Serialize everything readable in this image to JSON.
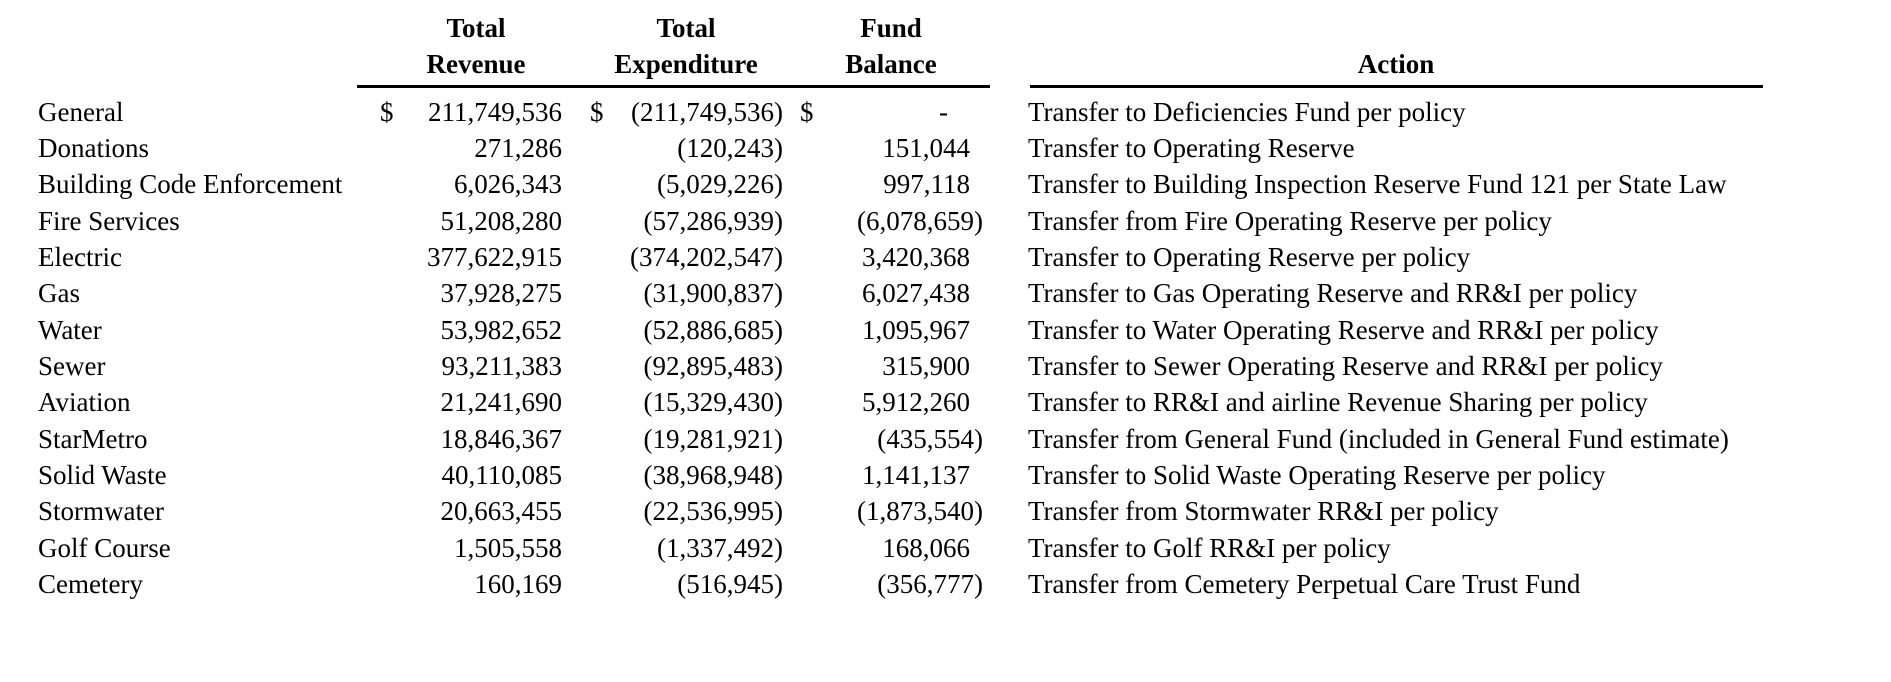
{
  "colors": {
    "text": "#000000",
    "background": "#ffffff",
    "rule": "#000000"
  },
  "table": {
    "columns": {
      "revenue": {
        "line1": "Total",
        "line2": "Revenue"
      },
      "expenditure": {
        "line1": "Total",
        "line2": "Expenditure"
      },
      "balance": {
        "line1": "Fund",
        "line2": "Balance"
      },
      "action": {
        "label": "Action"
      }
    },
    "rows": [
      {
        "fund": "General",
        "revenue_currency": "$",
        "revenue": "211,749,536",
        "expenditure_currency": "$",
        "expenditure": "(211,749,536)",
        "balance_currency": "$",
        "balance": "-",
        "action": "Transfer to Deficiencies Fund per policy"
      },
      {
        "fund": "Donations",
        "revenue": "271,286",
        "expenditure": "(120,243)",
        "balance": "151,044",
        "action": "Transfer to Operating Reserve"
      },
      {
        "fund": "Building Code Enforcement",
        "revenue": "6,026,343",
        "expenditure": "(5,029,226)",
        "balance": "997,118",
        "action": "Transfer to Building Inspection Reserve Fund 121 per State Law"
      },
      {
        "fund": "Fire Services",
        "revenue": "51,208,280",
        "expenditure": "(57,286,939)",
        "balance": "(6,078,659)",
        "action": "Transfer from Fire Operating Reserve per policy"
      },
      {
        "fund": "Electric",
        "revenue": "377,622,915",
        "expenditure": "(374,202,547)",
        "balance": "3,420,368",
        "action": "Transfer to Operating Reserve per policy"
      },
      {
        "fund": "Gas",
        "revenue": "37,928,275",
        "expenditure": "(31,900,837)",
        "balance": "6,027,438",
        "action": "Transfer to Gas Operating Reserve and RR&I per policy"
      },
      {
        "fund": "Water",
        "revenue": "53,982,652",
        "expenditure": "(52,886,685)",
        "balance": "1,095,967",
        "action": "Transfer to Water Operating Reserve and RR&I per policy"
      },
      {
        "fund": "Sewer",
        "revenue": "93,211,383",
        "expenditure": "(92,895,483)",
        "balance": "315,900",
        "action": "Transfer to Sewer Operating Reserve and RR&I per policy"
      },
      {
        "fund": "Aviation",
        "revenue": "21,241,690",
        "expenditure": "(15,329,430)",
        "balance": "5,912,260",
        "action": "Transfer to RR&I and airline Revenue Sharing per policy"
      },
      {
        "fund": "StarMetro",
        "revenue": "18,846,367",
        "expenditure": "(19,281,921)",
        "balance": "(435,554)",
        "action": "Transfer from General Fund (included in General Fund estimate)"
      },
      {
        "fund": "Solid Waste",
        "revenue": "40,110,085",
        "expenditure": "(38,968,948)",
        "balance": "1,141,137",
        "action": "Transfer to Solid Waste Operating Reserve per policy"
      },
      {
        "fund": "Stormwater",
        "revenue": "20,663,455",
        "expenditure": "(22,536,995)",
        "balance": "(1,873,540)",
        "action": "Transfer from Stormwater RR&I per policy"
      },
      {
        "fund": "Golf Course",
        "revenue": "1,505,558",
        "expenditure": "(1,337,492)",
        "balance": "168,066",
        "action": "Transfer to Golf RR&I per policy"
      },
      {
        "fund": "Cemetery",
        "revenue": "160,169",
        "expenditure": "(516,945)",
        "balance": "(356,777)",
        "action": "Transfer from Cemetery Perpetual Care Trust Fund"
      }
    ]
  }
}
